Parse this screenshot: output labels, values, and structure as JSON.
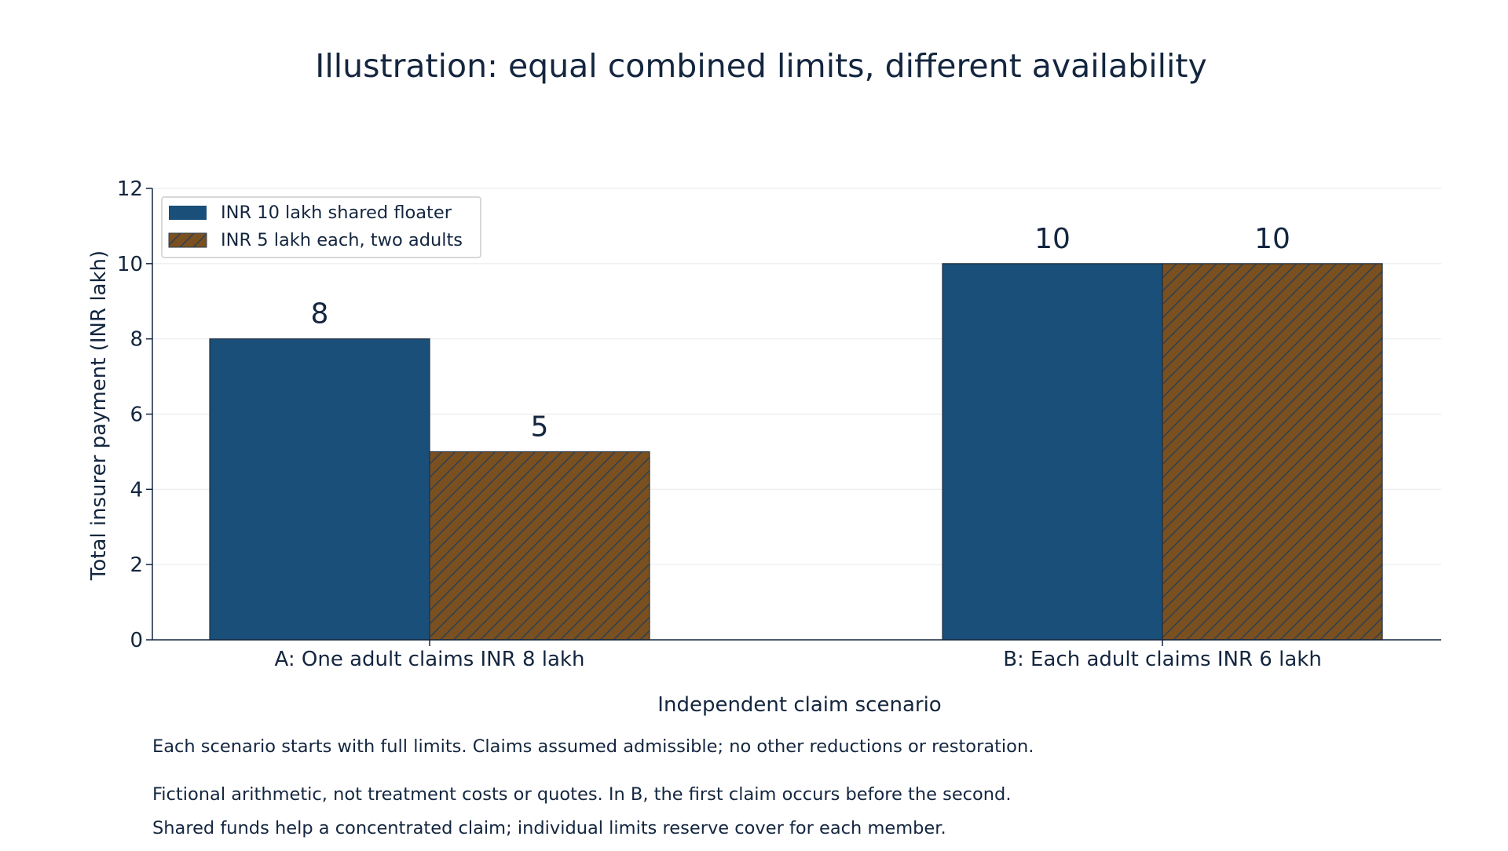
{
  "chart_data": {
    "type": "bar",
    "title": "Illustration: equal combined limits, different availability",
    "xlabel": "Independent claim scenario",
    "ylabel": "Total insurer payment (INR lakh)",
    "categories": [
      "A: One adult claims INR 8 lakh",
      "B: Each adult claims INR 6 lakh"
    ],
    "series": [
      {
        "name": "INR 10 lakh shared floater",
        "values": [
          8,
          10
        ],
        "color": "#1a4f79",
        "pattern": "solid"
      },
      {
        "name": "INR 5 lakh each, two adults",
        "values": [
          5,
          10
        ],
        "color": "#7a5020",
        "pattern": "hatch"
      }
    ],
    "ylim": [
      0,
      12
    ],
    "yticks": [
      0,
      2,
      4,
      6,
      8,
      10,
      12
    ],
    "grid": "horizontal",
    "legend": "top-left",
    "data_labels": true
  },
  "notes": [
    "Each scenario starts with full limits. Claims assumed admissible; no other reductions or restoration.",
    "Fictional arithmetic, not treatment costs or quotes. In B, the first claim occurs before the second.",
    "Shared funds help a concentrated claim; individual limits reserve cover for each member."
  ]
}
